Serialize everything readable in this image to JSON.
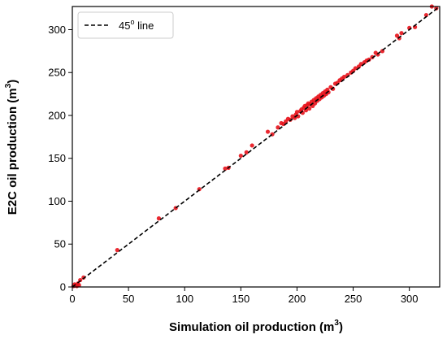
{
  "chart_data": {
    "type": "scatter",
    "xlabel_text": "Simulation oil production (m",
    "xlabel_sup": "3",
    "xlabel_close": ")",
    "ylabel_text": "E2C oil production (m",
    "ylabel_sup": "3",
    "ylabel_close": ")",
    "xlim": [
      0,
      327
    ],
    "ylim": [
      0,
      327
    ],
    "xticks": [
      0,
      50,
      100,
      150,
      200,
      250,
      300
    ],
    "yticks": [
      0,
      50,
      100,
      150,
      200,
      250,
      300
    ],
    "legend": {
      "position": "top-left",
      "label_main": "45",
      "label_sup": "o",
      "label_rest": " line"
    },
    "reference_line": {
      "name": "45° line",
      "style": "dashed",
      "color": "#000000"
    },
    "points_color": "#e8121b",
    "points": [
      [
        1,
        1
      ],
      [
        2,
        3
      ],
      [
        3,
        2
      ],
      [
        4,
        1
      ],
      [
        5,
        4
      ],
      [
        6,
        2
      ],
      [
        7,
        8
      ],
      [
        10,
        11
      ],
      [
        40,
        43
      ],
      [
        77,
        80
      ],
      [
        92,
        92
      ],
      [
        113,
        114
      ],
      [
        136,
        138
      ],
      [
        139,
        139
      ],
      [
        150,
        153
      ],
      [
        155,
        157
      ],
      [
        160,
        165
      ],
      [
        174,
        181
      ],
      [
        178,
        178
      ],
      [
        183,
        186
      ],
      [
        186,
        191
      ],
      [
        188,
        190
      ],
      [
        190,
        193
      ],
      [
        192,
        196
      ],
      [
        194,
        195
      ],
      [
        196,
        199
      ],
      [
        198,
        197
      ],
      [
        199,
        201
      ],
      [
        200,
        204
      ],
      [
        201,
        199
      ],
      [
        203,
        205
      ],
      [
        204,
        207
      ],
      [
        205,
        203
      ],
      [
        206,
        209
      ],
      [
        207,
        211
      ],
      [
        208,
        206
      ],
      [
        209,
        212
      ],
      [
        210,
        214
      ],
      [
        211,
        208
      ],
      [
        212,
        213
      ],
      [
        213,
        216
      ],
      [
        214,
        211
      ],
      [
        215,
        218
      ],
      [
        216,
        214
      ],
      [
        217,
        220
      ],
      [
        218,
        217
      ],
      [
        219,
        222
      ],
      [
        220,
        219
      ],
      [
        221,
        224
      ],
      [
        222,
        221
      ],
      [
        223,
        226
      ],
      [
        224,
        223
      ],
      [
        225,
        228
      ],
      [
        226,
        225
      ],
      [
        227,
        230
      ],
      [
        228,
        227
      ],
      [
        230,
        233
      ],
      [
        232,
        231
      ],
      [
        234,
        237
      ],
      [
        236,
        238
      ],
      [
        238,
        241
      ],
      [
        240,
        243
      ],
      [
        242,
        245
      ],
      [
        245,
        247
      ],
      [
        248,
        250
      ],
      [
        250,
        252
      ],
      [
        252,
        255
      ],
      [
        255,
        257
      ],
      [
        257,
        260
      ],
      [
        260,
        262
      ],
      [
        262,
        264
      ],
      [
        264,
        265
      ],
      [
        267,
        268
      ],
      [
        270,
        273
      ],
      [
        272,
        271
      ],
      [
        276,
        275
      ],
      [
        289,
        293
      ],
      [
        291,
        290
      ],
      [
        293,
        296
      ],
      [
        300,
        302
      ],
      [
        305,
        303
      ],
      [
        315,
        317
      ],
      [
        320,
        327
      ],
      [
        324,
        325
      ]
    ]
  }
}
